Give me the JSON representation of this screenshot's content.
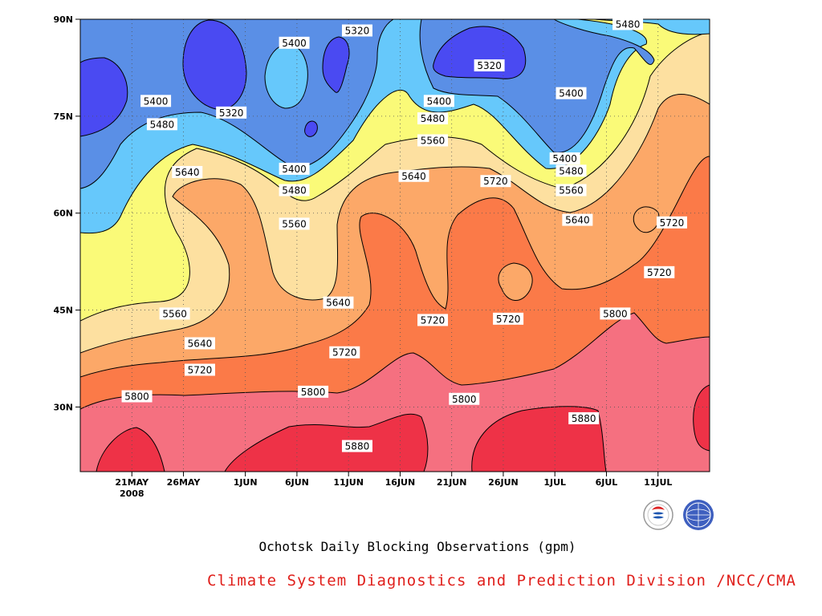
{
  "chart_data": {
    "type": "filled-contour",
    "title": "Ochotsk Daily Blocking Observations (gpm)",
    "credit": "Climate System Diagnostics and Prediction Division /NCC/CMA",
    "x_axis": {
      "start_date": "2008-05-16",
      "end_date": "2008-07-16",
      "ticks": [
        "21MAY",
        "26MAY",
        "1JUN",
        "6JUN",
        "11JUN",
        "16JUN",
        "21JUN",
        "26JUN",
        "1JUL",
        "6JUL",
        "11JUL"
      ],
      "year_label": "2008"
    },
    "y_axis": {
      "range": [
        20,
        90
      ],
      "ticks": [
        "30N",
        "45N",
        "60N",
        "75N",
        "90N"
      ]
    },
    "grid": "dotted",
    "levels": [
      5320,
      5400,
      5480,
      5560,
      5640,
      5720,
      5800,
      5880
    ],
    "fill_colors": [
      "#4a4af2",
      "#5a8fe6",
      "#66c8fb",
      "#fafa78",
      "#fde0a0",
      "#fca868",
      "#fb7a48",
      "#f57080",
      "#ee3247"
    ],
    "contour_labels": [
      {
        "text": "5320",
        "t": 0.44,
        "lat": 88.2
      },
      {
        "text": "5400",
        "t": 0.34,
        "lat": 86.3
      },
      {
        "text": "5480",
        "t": 0.87,
        "lat": 89.2
      },
      {
        "text": "5320",
        "t": 0.65,
        "lat": 82.8
      },
      {
        "text": "5400",
        "t": 0.12,
        "lat": 77.3
      },
      {
        "text": "5320",
        "t": 0.24,
        "lat": 75.5
      },
      {
        "text": "5400",
        "t": 0.57,
        "lat": 77.3
      },
      {
        "text": "5400",
        "t": 0.78,
        "lat": 78.5
      },
      {
        "text": "5480",
        "t": 0.13,
        "lat": 73.7
      },
      {
        "text": "5480",
        "t": 0.56,
        "lat": 74.6
      },
      {
        "text": "5560",
        "t": 0.56,
        "lat": 71.2
      },
      {
        "text": "5400",
        "t": 0.77,
        "lat": 68.4
      },
      {
        "text": "5400",
        "t": 0.34,
        "lat": 66.8
      },
      {
        "text": "5480",
        "t": 0.78,
        "lat": 66.5
      },
      {
        "text": "5640",
        "t": 0.17,
        "lat": 66.3
      },
      {
        "text": "5640",
        "t": 0.53,
        "lat": 65.7
      },
      {
        "text": "5720",
        "t": 0.66,
        "lat": 64.9
      },
      {
        "text": "5480",
        "t": 0.34,
        "lat": 63.5
      },
      {
        "text": "5560",
        "t": 0.78,
        "lat": 63.5
      },
      {
        "text": "5640",
        "t": 0.79,
        "lat": 58.9
      },
      {
        "text": "5560",
        "t": 0.34,
        "lat": 58.3
      },
      {
        "text": "5720",
        "t": 0.94,
        "lat": 58.5
      },
      {
        "text": "5720",
        "t": 0.92,
        "lat": 50.8
      },
      {
        "text": "5640",
        "t": 0.41,
        "lat": 46.1
      },
      {
        "text": "5800",
        "t": 0.85,
        "lat": 44.4
      },
      {
        "text": "5560",
        "t": 0.15,
        "lat": 44.4
      },
      {
        "text": "5720",
        "t": 0.56,
        "lat": 43.4
      },
      {
        "text": "5720",
        "t": 0.68,
        "lat": 43.6
      },
      {
        "text": "5640",
        "t": 0.19,
        "lat": 39.8
      },
      {
        "text": "5720",
        "t": 0.42,
        "lat": 38.4
      },
      {
        "text": "5720",
        "t": 0.19,
        "lat": 35.7
      },
      {
        "text": "5800",
        "t": 0.37,
        "lat": 32.3
      },
      {
        "text": "5800",
        "t": 0.09,
        "lat": 31.6
      },
      {
        "text": "5800",
        "t": 0.61,
        "lat": 31.2
      },
      {
        "text": "5880",
        "t": 0.8,
        "lat": 28.2
      },
      {
        "text": "5880",
        "t": 0.44,
        "lat": 23.9
      }
    ]
  }
}
